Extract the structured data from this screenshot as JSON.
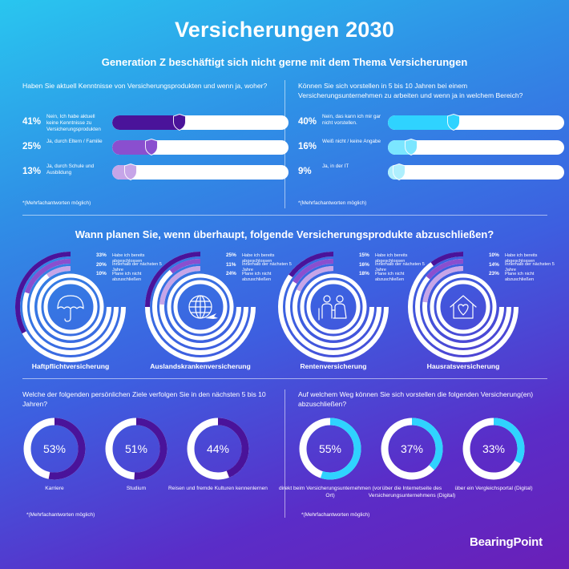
{
  "title": "Versicherungen 2030",
  "subtitle": "Generation Z beschäftigt sich nicht gerne mit dem Thema Versicherungen",
  "note": "*(Mehrfachantworten möglich)",
  "logo": "BearingPoint",
  "colors": {
    "dark_purple": "#4a139a",
    "mid_purple": "#8a4fcf",
    "light_purple": "#c6a5e8",
    "cyan": "#2fd3ff",
    "light_cyan": "#7be6ff",
    "pale_cyan": "#aeeffd"
  },
  "chart_data": [
    {
      "type": "bar",
      "title": "Haben Sie aktuell Kenntnisse von Versicherungsprodukten und wenn ja, woher?",
      "categories": [
        "Nein, Ich habe aktuell keine Kenntnisse zu Versicherungsprodukten",
        "Ja, durch Eltern / Familie",
        "Ja, durch Schule und Ausbildung"
      ],
      "pct_labels": [
        "41%",
        "25%",
        "13%"
      ],
      "values": [
        41,
        25,
        13
      ],
      "ylim": [
        0,
        100
      ],
      "note": "*(Mehrfachantworten möglich)"
    },
    {
      "type": "bar",
      "title": "Können Sie sich vorstellen in 5 bis 10 Jahren bei einem Versicherungsunternehmen zu arbeiten und wenn ja in welchem Bereich?",
      "categories": [
        "Nein, das kann ich mir gar nicht vorstellen.",
        "Weiß nicht / keine Angabe",
        "Ja, in der IT"
      ],
      "pct_labels": [
        "40%",
        "16%",
        "9%"
      ],
      "values": [
        40,
        16,
        9
      ],
      "ylim": [
        0,
        100
      ],
      "note": "*(Mehrfachantworten möglich)"
    },
    {
      "type": "bar",
      "title": "Wann planen Sie, wenn überhaupt, folgende Versicherungsprodukte abzuschließen?",
      "series_labels": [
        "Habe ich bereits abgeschlossen",
        "Innerhalb der nächsten 5 Jahre",
        "Plane ich nicht abzuschließen"
      ],
      "products": [
        {
          "name": "Haftpflichtversicherung",
          "icon": "umbrella-icon",
          "pct_labels": [
            "33%",
            "20%",
            "10%"
          ],
          "values": [
            33,
            20,
            10
          ]
        },
        {
          "name": "Auslandskrankenversicherung",
          "icon": "globe-plane-icon",
          "pct_labels": [
            "25%",
            "11%",
            "24%"
          ],
          "values": [
            25,
            11,
            24
          ]
        },
        {
          "name": "Rentenversicherung",
          "icon": "elderly-couple-icon",
          "pct_labels": [
            "15%",
            "16%",
            "18%"
          ],
          "values": [
            15,
            16,
            18
          ]
        },
        {
          "name": "Hausratsversicherung",
          "icon": "house-icon",
          "pct_labels": [
            "10%",
            "14%",
            "23%"
          ],
          "values": [
            10,
            14,
            23
          ]
        }
      ]
    },
    {
      "type": "pie",
      "title": "Welche der folgenden persönlichen Ziele verfolgen Sie in den nächsten 5 bis 10 Jahren?",
      "categories": [
        "Karriere",
        "Studium",
        "Reisen und fremde Kulturen kennenlernen"
      ],
      "pct_labels": [
        "53%",
        "51%",
        "44%"
      ],
      "values": [
        53,
        51,
        44
      ],
      "note": "*(Mehrfachantworten möglich)"
    },
    {
      "type": "pie",
      "title": "Auf welchem Weg können Sie sich vorstellen die folgenden Versicherung(en) abzuschließen?",
      "categories": [
        "direkt beim Versicherungsunternehmen (vor Ort)",
        "über die Internetseite des Versicherungsunternehmens (Digital)",
        "über ein Vergleichsportal (Digital)"
      ],
      "pct_labels": [
        "55%",
        "37%",
        "33%"
      ],
      "values": [
        55,
        37,
        33
      ],
      "note": "*(Mehrfachantworten möglich)"
    }
  ]
}
